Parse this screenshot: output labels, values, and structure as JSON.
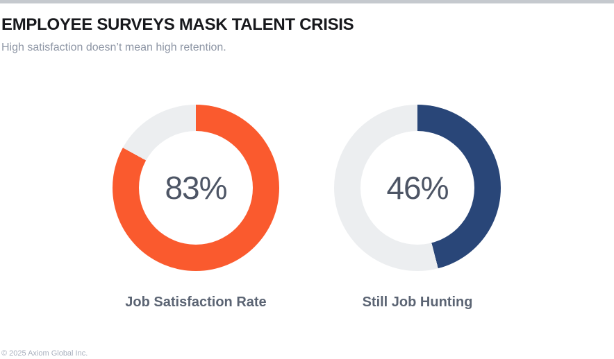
{
  "page": {
    "title": "EMPLOYEE SURVEYS MASK TALENT CRISIS",
    "subtitle": "High satisfaction doesn’t mean high retention.",
    "footer": "© 2025 Axiom Global Inc."
  },
  "colors": {
    "canvas_bg": "#ffffff",
    "top_bar": "#c5c9ce",
    "title_text": "#17181c",
    "subtitle_text": "#8e96a5",
    "value_text": "#4d5565",
    "label_text": "#5b6473",
    "footer_text": "#a8afbd",
    "accent_orange": "#fa5a2e",
    "accent_navy": "#294678",
    "track_gray": "#eceef0"
  },
  "chart_data": [
    {
      "type": "pie",
      "subtype": "donut",
      "title": "Job Satisfaction Rate",
      "value": 83,
      "value_label": "83%",
      "remainder": 17,
      "color": "#fa5a2e",
      "track_color": "#eceef0",
      "start_angle_deg": 0,
      "direction": "clockwise",
      "center_text": "83%"
    },
    {
      "type": "pie",
      "subtype": "donut",
      "title": "Still Job Hunting",
      "value": 46,
      "value_label": "46%",
      "remainder": 54,
      "color": "#294678",
      "track_color": "#eceef0",
      "start_angle_deg": 0,
      "direction": "clockwise",
      "center_text": "46%"
    }
  ]
}
